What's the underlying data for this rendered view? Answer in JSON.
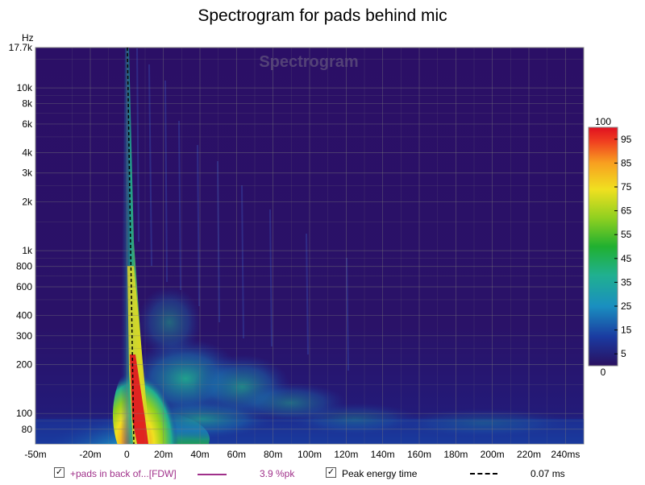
{
  "chart_data": {
    "type": "heatmap",
    "title": "Spectrogram for pads behind mic",
    "watermark": "Spectrogram",
    "y_unit_label": "Hz",
    "y_scale": "log",
    "ylim": [
      65,
      17700
    ],
    "xlim": [
      -50,
      250
    ],
    "y_ticks": [
      {
        "value": 17700,
        "label": "17.7k"
      },
      {
        "value": 10000,
        "label": "10k"
      },
      {
        "value": 8000,
        "label": "8k"
      },
      {
        "value": 6000,
        "label": "6k"
      },
      {
        "value": 4000,
        "label": "4k"
      },
      {
        "value": 3000,
        "label": "3k"
      },
      {
        "value": 2000,
        "label": "2k"
      },
      {
        "value": 1000,
        "label": "1k"
      },
      {
        "value": 800,
        "label": "800"
      },
      {
        "value": 600,
        "label": "600"
      },
      {
        "value": 400,
        "label": "400"
      },
      {
        "value": 300,
        "label": "300"
      },
      {
        "value": 200,
        "label": "200"
      },
      {
        "value": 100,
        "label": "100"
      },
      {
        "value": 80,
        "label": "80"
      }
    ],
    "x_ticks": [
      {
        "value": -50,
        "label": "-50m"
      },
      {
        "value": -20,
        "label": "-20m"
      },
      {
        "value": 0,
        "label": "0"
      },
      {
        "value": 20,
        "label": "20m"
      },
      {
        "value": 40,
        "label": "40m"
      },
      {
        "value": 60,
        "label": "60m"
      },
      {
        "value": 80,
        "label": "80m"
      },
      {
        "value": 100,
        "label": "100m"
      },
      {
        "value": 120,
        "label": "120m"
      },
      {
        "value": 140,
        "label": "140m"
      },
      {
        "value": 160,
        "label": "160m"
      },
      {
        "value": 180,
        "label": "180m"
      },
      {
        "value": 200,
        "label": "200m"
      },
      {
        "value": 220,
        "label": "220m"
      },
      {
        "value": 240,
        "label": "240ms"
      }
    ],
    "colorbar": {
      "min_label": "0",
      "max_label": "100",
      "tick_labels": [
        "95",
        "85",
        "75",
        "65",
        "55",
        "45",
        "35",
        "25",
        "15",
        "5"
      ],
      "colors": [
        "#2a1060",
        "#1a3aa0",
        "#1a8fc0",
        "#20b090",
        "#20b030",
        "#90d020",
        "#f0e020",
        "#f8a020",
        "#f04020",
        "#e01020"
      ]
    },
    "peak_energy_time_ms": 0.07,
    "grid": true
  },
  "legend": {
    "series_label": "+pads in back of...[FDW]",
    "series_color": "#a0308a",
    "series_value": "3.9 %pk",
    "peak_label": "Peak energy time",
    "peak_value": "0.07 ms",
    "check": "✓"
  }
}
